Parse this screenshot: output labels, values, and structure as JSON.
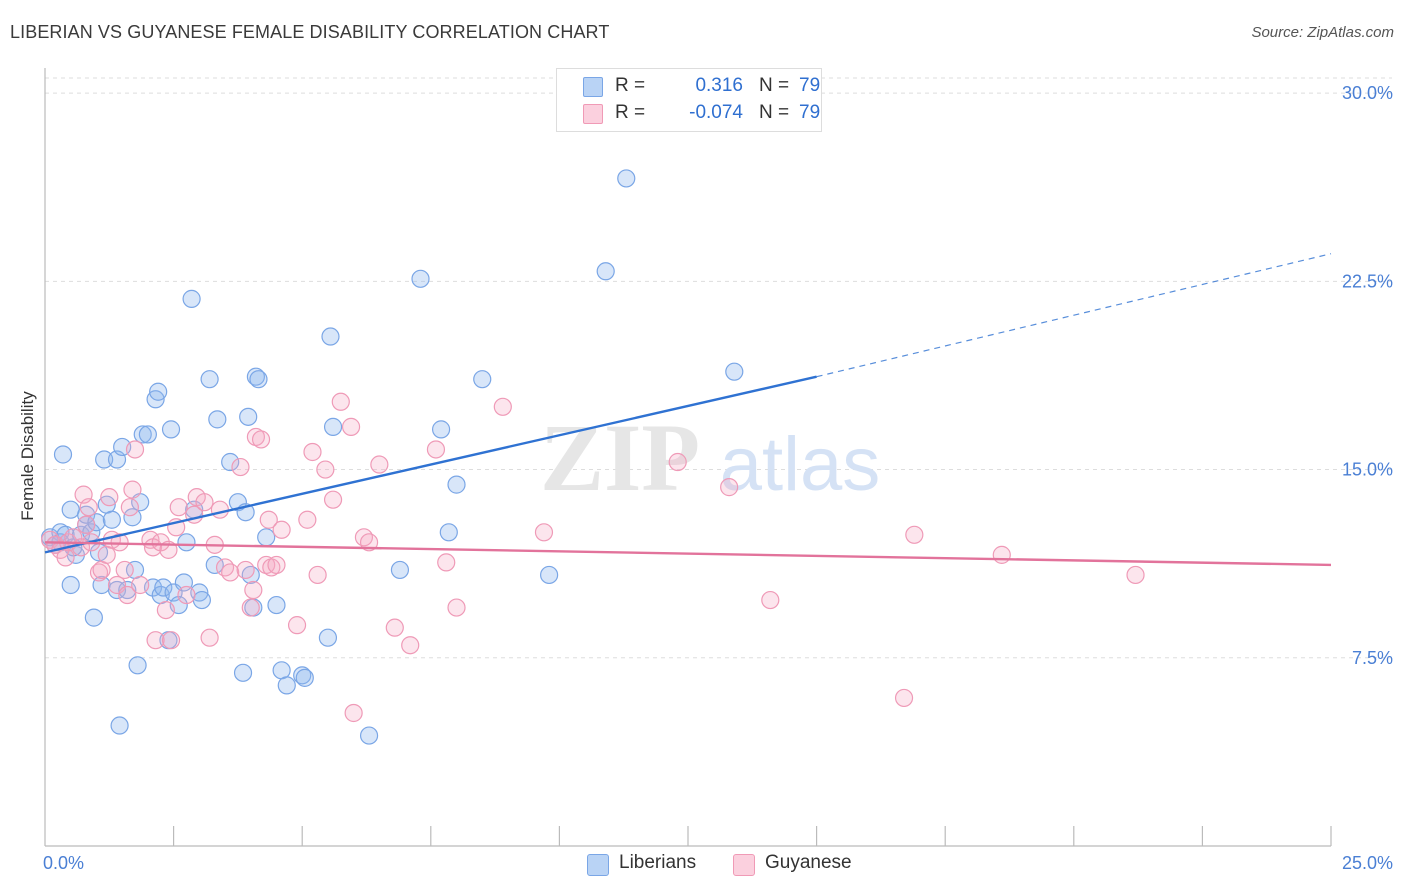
{
  "header": {
    "title": "LIBERIAN VS GUYANESE FEMALE DISABILITY CORRELATION CHART",
    "source": "Source: ZipAtlas.com"
  },
  "watermark": {
    "zip": "ZIP",
    "atlas": "atlas"
  },
  "legend": {
    "rows": [
      {
        "r_label": "R =",
        "r_value": "0.316",
        "n_label": "N =",
        "n_value": "79",
        "color": "#8fb8ef"
      },
      {
        "r_label": "R =",
        "r_value": "-0.074",
        "n_label": "N =",
        "n_value": "79",
        "color": "#f4a9c2"
      }
    ]
  },
  "bottom_legend": {
    "items": [
      {
        "label": "Liberians",
        "color": "#8fb8ef"
      },
      {
        "label": "Guyanese",
        "color": "#f4a9c2"
      }
    ]
  },
  "chart_data": {
    "type": "scatter",
    "title": "LIBERIAN VS GUYANESE FEMALE DISABILITY CORRELATION CHART",
    "xlabel": "",
    "ylabel": "Female Disability",
    "xlim": [
      0,
      25
    ],
    "ylim": [
      0,
      31
    ],
    "x_tick_labels": [
      {
        "value": 0,
        "label": "0.0%"
      },
      {
        "value": 25,
        "label": "25.0%"
      }
    ],
    "x_minor_ticks": [
      2.5,
      5,
      7.5,
      10,
      12.5,
      15,
      17.5,
      20,
      22.5,
      25
    ],
    "y_ticks": [
      {
        "value": 7.5,
        "label": "7.5%"
      },
      {
        "value": 15,
        "label": "15.0%"
      },
      {
        "value": 22.5,
        "label": "22.5%"
      },
      {
        "value": 30,
        "label": "30.0%"
      }
    ],
    "grid": true,
    "legend_position": "top-center",
    "series": [
      {
        "name": "Liberians",
        "color": "#8fb8ef",
        "line_color": "#2f72d2",
        "trend": {
          "x0": 0,
          "y0": 11.7,
          "x1": 15,
          "y1": 18.7,
          "dashed_to_x": 25,
          "dashed_to_y": 23.6
        },
        "points": [
          [
            0.1,
            12.3
          ],
          [
            0.2,
            12.0
          ],
          [
            0.3,
            12.5
          ],
          [
            0.3,
            12.1
          ],
          [
            0.35,
            15.6
          ],
          [
            0.4,
            12.4
          ],
          [
            0.5,
            13.4
          ],
          [
            0.5,
            10.4
          ],
          [
            0.6,
            11.6
          ],
          [
            0.7,
            12.4
          ],
          [
            0.8,
            12.8
          ],
          [
            0.8,
            13.2
          ],
          [
            0.9,
            12.5
          ],
          [
            0.95,
            9.1
          ],
          [
            1.0,
            12.9
          ],
          [
            1.05,
            11.7
          ],
          [
            1.1,
            10.4
          ],
          [
            1.15,
            15.4
          ],
          [
            1.2,
            13.6
          ],
          [
            1.3,
            13.0
          ],
          [
            1.4,
            15.4
          ],
          [
            1.4,
            10.2
          ],
          [
            1.5,
            15.9
          ],
          [
            1.6,
            10.2
          ],
          [
            1.7,
            13.1
          ],
          [
            1.75,
            11.0
          ],
          [
            1.8,
            7.2
          ],
          [
            1.85,
            13.7
          ],
          [
            1.9,
            16.4
          ],
          [
            2.0,
            16.4
          ],
          [
            2.1,
            10.3
          ],
          [
            2.15,
            17.8
          ],
          [
            2.2,
            18.1
          ],
          [
            2.25,
            10.0
          ],
          [
            2.3,
            10.3
          ],
          [
            2.4,
            8.2
          ],
          [
            2.45,
            16.6
          ],
          [
            2.5,
            10.1
          ],
          [
            2.6,
            9.6
          ],
          [
            2.7,
            10.5
          ],
          [
            2.85,
            21.8
          ],
          [
            2.9,
            13.4
          ],
          [
            3.0,
            10.1
          ],
          [
            3.05,
            9.8
          ],
          [
            3.2,
            18.6
          ],
          [
            3.35,
            17.0
          ],
          [
            3.6,
            15.3
          ],
          [
            3.75,
            13.7
          ],
          [
            3.85,
            6.9
          ],
          [
            3.9,
            13.3
          ],
          [
            3.95,
            17.1
          ],
          [
            4.0,
            10.8
          ],
          [
            4.05,
            9.5
          ],
          [
            4.1,
            18.7
          ],
          [
            4.15,
            18.6
          ],
          [
            4.3,
            12.3
          ],
          [
            4.5,
            9.6
          ],
          [
            4.6,
            7.0
          ],
          [
            4.7,
            6.4
          ],
          [
            5.0,
            6.8
          ],
          [
            5.05,
            6.7
          ],
          [
            5.5,
            8.3
          ],
          [
            5.55,
            20.3
          ],
          [
            5.6,
            16.7
          ],
          [
            6.3,
            4.4
          ],
          [
            6.9,
            11.0
          ],
          [
            7.3,
            22.6
          ],
          [
            7.7,
            16.6
          ],
          [
            7.85,
            12.5
          ],
          [
            8.0,
            14.4
          ],
          [
            8.5,
            18.6
          ],
          [
            9.8,
            10.8
          ],
          [
            10.9,
            22.9
          ],
          [
            11.3,
            26.6
          ],
          [
            13.4,
            18.9
          ],
          [
            1.45,
            4.8
          ],
          [
            0.55,
            11.9
          ],
          [
            2.75,
            12.1
          ],
          [
            3.3,
            11.2
          ]
        ]
      },
      {
        "name": "Guyanese",
        "color": "#f4a9c2",
        "line_color": "#e2739b",
        "trend": {
          "x0": 0,
          "y0": 12.1,
          "x1": 25,
          "y1": 11.2
        },
        "points": [
          [
            0.1,
            12.2
          ],
          [
            0.2,
            12.0
          ],
          [
            0.3,
            11.8
          ],
          [
            0.4,
            11.5
          ],
          [
            0.45,
            12.1
          ],
          [
            0.55,
            12.3
          ],
          [
            0.7,
            11.9
          ],
          [
            0.75,
            14.0
          ],
          [
            0.8,
            12.8
          ],
          [
            0.85,
            13.5
          ],
          [
            0.9,
            12.1
          ],
          [
            1.05,
            10.9
          ],
          [
            1.1,
            11.0
          ],
          [
            1.2,
            11.6
          ],
          [
            1.25,
            13.9
          ],
          [
            1.3,
            12.2
          ],
          [
            1.4,
            10.4
          ],
          [
            1.45,
            12.1
          ],
          [
            1.55,
            11.0
          ],
          [
            1.6,
            10.0
          ],
          [
            1.65,
            13.5
          ],
          [
            1.7,
            14.2
          ],
          [
            1.75,
            15.8
          ],
          [
            1.85,
            10.4
          ],
          [
            2.05,
            12.2
          ],
          [
            2.1,
            11.9
          ],
          [
            2.15,
            8.2
          ],
          [
            2.25,
            12.1
          ],
          [
            2.35,
            9.4
          ],
          [
            2.4,
            11.8
          ],
          [
            2.45,
            8.2
          ],
          [
            2.55,
            12.7
          ],
          [
            2.6,
            13.5
          ],
          [
            2.75,
            10.0
          ],
          [
            2.9,
            13.2
          ],
          [
            2.95,
            13.9
          ],
          [
            3.1,
            13.7
          ],
          [
            3.2,
            8.3
          ],
          [
            3.3,
            12.0
          ],
          [
            3.4,
            13.4
          ],
          [
            3.5,
            11.1
          ],
          [
            3.6,
            10.9
          ],
          [
            3.8,
            15.1
          ],
          [
            3.9,
            11.0
          ],
          [
            4.0,
            9.5
          ],
          [
            4.1,
            16.3
          ],
          [
            4.2,
            16.2
          ],
          [
            4.3,
            11.2
          ],
          [
            4.35,
            13.0
          ],
          [
            4.4,
            11.1
          ],
          [
            4.5,
            11.2
          ],
          [
            4.6,
            12.6
          ],
          [
            4.9,
            8.8
          ],
          [
            5.1,
            13.0
          ],
          [
            5.2,
            15.7
          ],
          [
            5.3,
            10.8
          ],
          [
            5.45,
            15.0
          ],
          [
            5.6,
            13.8
          ],
          [
            5.75,
            17.7
          ],
          [
            5.95,
            16.7
          ],
          [
            6.2,
            12.3
          ],
          [
            6.3,
            12.1
          ],
          [
            6.5,
            15.2
          ],
          [
            6.8,
            8.7
          ],
          [
            7.1,
            8.0
          ],
          [
            7.6,
            15.8
          ],
          [
            7.8,
            11.3
          ],
          [
            8.0,
            9.5
          ],
          [
            8.9,
            17.5
          ],
          [
            9.7,
            12.5
          ],
          [
            12.3,
            15.3
          ],
          [
            13.3,
            14.3
          ],
          [
            14.1,
            9.8
          ],
          [
            16.7,
            5.9
          ],
          [
            16.9,
            12.4
          ],
          [
            18.6,
            11.6
          ],
          [
            21.2,
            10.8
          ],
          [
            6.0,
            5.3
          ],
          [
            4.05,
            10.2
          ]
        ]
      }
    ]
  }
}
